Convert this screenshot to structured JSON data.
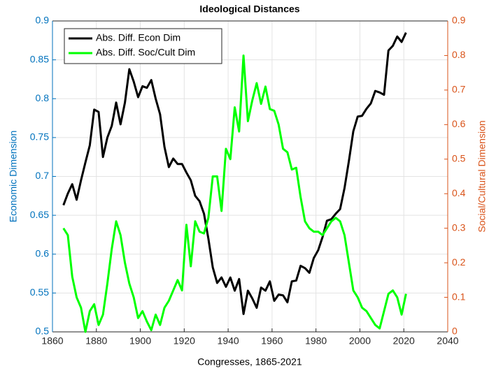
{
  "chart_data": {
    "type": "line",
    "title": "Ideological Distances",
    "xlabel": "Congresses, 1865-2021",
    "ylabel": "Economic Dimension",
    "y2label": "Social/Cultural Dimension",
    "x": [
      1865,
      1867,
      1869,
      1871,
      1873,
      1875,
      1877,
      1879,
      1881,
      1883,
      1885,
      1887,
      1889,
      1891,
      1893,
      1895,
      1897,
      1899,
      1901,
      1903,
      1905,
      1907,
      1909,
      1911,
      1913,
      1915,
      1917,
      1919,
      1921,
      1923,
      1925,
      1927,
      1929,
      1931,
      1933,
      1935,
      1937,
      1939,
      1941,
      1943,
      1945,
      1947,
      1949,
      1951,
      1953,
      1955,
      1957,
      1959,
      1961,
      1963,
      1965,
      1967,
      1969,
      1971,
      1973,
      1975,
      1977,
      1979,
      1981,
      1983,
      1985,
      1987,
      1989,
      1991,
      1993,
      1995,
      1997,
      1999,
      2001,
      2003,
      2005,
      2007,
      2009,
      2011,
      2013,
      2015,
      2017,
      2019,
      2021
    ],
    "series": [
      {
        "name": "Abs. Diff. Econ Dim",
        "color": "#000000",
        "axis": "y",
        "values": [
          0.663,
          0.678,
          0.69,
          0.67,
          0.695,
          0.718,
          0.74,
          0.786,
          0.783,
          0.725,
          0.75,
          0.765,
          0.795,
          0.767,
          0.795,
          0.838,
          0.822,
          0.802,
          0.816,
          0.814,
          0.824,
          0.8,
          0.78,
          0.738,
          0.712,
          0.723,
          0.716,
          0.716,
          0.705,
          0.695,
          0.675,
          0.668,
          0.652,
          0.62,
          0.583,
          0.563,
          0.57,
          0.558,
          0.57,
          0.553,
          0.568,
          0.523,
          0.553,
          0.543,
          0.531,
          0.557,
          0.553,
          0.565,
          0.54,
          0.548,
          0.547,
          0.538,
          0.565,
          0.566,
          0.585,
          0.582,
          0.576,
          0.595,
          0.605,
          0.622,
          0.643,
          0.645,
          0.652,
          0.658,
          0.685,
          0.72,
          0.758,
          0.777,
          0.778,
          0.787,
          0.794,
          0.81,
          0.808,
          0.805,
          0.862,
          0.868,
          0.88,
          0.873,
          0.885
        ]
      },
      {
        "name": "Abs. Diff. Soc/Cult Dim",
        "color": "#00ff00",
        "axis": "y2",
        "values": [
          0.3,
          0.28,
          0.16,
          0.1,
          0.07,
          0.0,
          0.06,
          0.08,
          0.02,
          0.05,
          0.14,
          0.24,
          0.32,
          0.28,
          0.2,
          0.14,
          0.1,
          0.04,
          0.06,
          0.03,
          0.005,
          0.05,
          0.02,
          0.07,
          0.09,
          0.12,
          0.15,
          0.12,
          0.31,
          0.19,
          0.32,
          0.29,
          0.285,
          0.33,
          0.45,
          0.45,
          0.35,
          0.53,
          0.5,
          0.65,
          0.58,
          0.8,
          0.61,
          0.67,
          0.72,
          0.66,
          0.71,
          0.645,
          0.64,
          0.6,
          0.53,
          0.52,
          0.47,
          0.475,
          0.39,
          0.32,
          0.3,
          0.29,
          0.29,
          0.28,
          0.3,
          0.32,
          0.33,
          0.32,
          0.28,
          0.2,
          0.12,
          0.1,
          0.07,
          0.06,
          0.04,
          0.02,
          0.01,
          0.06,
          0.11,
          0.12,
          0.1,
          0.05,
          0.11
        ]
      }
    ],
    "xlim": [
      1860,
      2040
    ],
    "xticks": [
      1860,
      1880,
      1900,
      1920,
      1940,
      1960,
      1980,
      2000,
      2020,
      2040
    ],
    "ylim": [
      0.5,
      0.9
    ],
    "yticks": [
      0.5,
      0.55,
      0.6,
      0.65,
      0.7,
      0.75,
      0.8,
      0.85,
      0.9
    ],
    "ycolor": "#0072bd",
    "y2lim": [
      0,
      0.9
    ],
    "y2ticks": [
      0,
      0.1,
      0.2,
      0.3,
      0.4,
      0.5,
      0.6,
      0.7,
      0.8,
      0.9
    ],
    "y2color": "#d95319",
    "grid": true,
    "legend": "upper-left"
  }
}
